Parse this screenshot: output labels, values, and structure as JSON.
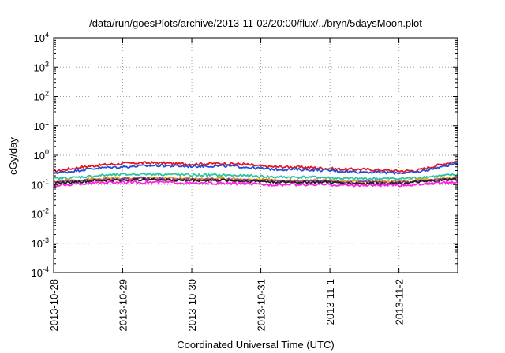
{
  "chart_data": {
    "type": "line",
    "title": "/data/run/goesPlots/archive/2013-11-02/20:00/flux/../bryn/5daysMoon.plot",
    "xlabel": "Coordinated Universal Time (UTC)",
    "ylabel": "cGy/day",
    "y_scale": "log",
    "ylim": [
      0.0001,
      10000
    ],
    "xlim": [
      0,
      5.85
    ],
    "grid": true,
    "legend": "none",
    "x_ticks": [
      {
        "label": "2013-10-28",
        "value": 0
      },
      {
        "label": "2013-10-29",
        "value": 1
      },
      {
        "label": "2013-10-30",
        "value": 2
      },
      {
        "label": "2013-10-31",
        "value": 3
      },
      {
        "label": "2013-11-1",
        "value": 4
      },
      {
        "label": "2013-11-2",
        "value": 5
      }
    ],
    "y_ticks": [
      {
        "base": "10",
        "exp": "-4",
        "value": 0.0001
      },
      {
        "base": "10",
        "exp": "-3",
        "value": 0.001
      },
      {
        "base": "10",
        "exp": "-2",
        "value": 0.01
      },
      {
        "base": "10",
        "exp": "-1",
        "value": 0.1
      },
      {
        "base": "10",
        "exp": "0",
        "value": 1
      },
      {
        "base": "10",
        "exp": "1",
        "value": 10
      },
      {
        "base": "10",
        "exp": "2",
        "value": 100
      },
      {
        "base": "10",
        "exp": "3",
        "value": 1000
      },
      {
        "base": "10",
        "exp": "4",
        "value": 10000
      }
    ],
    "x": [
      0,
      0.25,
      0.5,
      0.75,
      1,
      1.25,
      1.5,
      1.75,
      2,
      2.25,
      2.5,
      2.75,
      3,
      3.25,
      3.5,
      3.75,
      4,
      4.25,
      4.5,
      4.75,
      5,
      5.25,
      5.5,
      5.75,
      5.85
    ],
    "series": [
      {
        "color": "#e8141e",
        "values": [
          0.28,
          0.35,
          0.42,
          0.48,
          0.52,
          0.55,
          0.55,
          0.52,
          0.5,
          0.52,
          0.52,
          0.5,
          0.42,
          0.4,
          0.4,
          0.38,
          0.35,
          0.33,
          0.33,
          0.31,
          0.29,
          0.3,
          0.42,
          0.58,
          0.6
        ]
      },
      {
        "color": "#1f4ede",
        "values": [
          0.25,
          0.28,
          0.34,
          0.38,
          0.4,
          0.43,
          0.45,
          0.43,
          0.42,
          0.43,
          0.43,
          0.4,
          0.35,
          0.33,
          0.33,
          0.32,
          0.3,
          0.28,
          0.27,
          0.26,
          0.25,
          0.26,
          0.35,
          0.48,
          0.5
        ]
      },
      {
        "color": "#2bc4a2",
        "values": [
          0.16,
          0.17,
          0.19,
          0.21,
          0.22,
          0.23,
          0.23,
          0.22,
          0.21,
          0.21,
          0.21,
          0.2,
          0.19,
          0.18,
          0.18,
          0.18,
          0.17,
          0.16,
          0.16,
          0.16,
          0.16,
          0.17,
          0.19,
          0.21,
          0.22
        ]
      },
      {
        "color": "#f0a000",
        "values": [
          0.13,
          0.14,
          0.15,
          0.16,
          0.16,
          0.17,
          0.17,
          0.16,
          0.16,
          0.16,
          0.16,
          0.15,
          0.15,
          0.14,
          0.14,
          0.14,
          0.14,
          0.13,
          0.13,
          0.13,
          0.13,
          0.14,
          0.15,
          0.17,
          0.17
        ]
      },
      {
        "color": "#8a3aa0",
        "values": [
          0.12,
          0.13,
          0.14,
          0.15,
          0.15,
          0.16,
          0.16,
          0.15,
          0.15,
          0.15,
          0.15,
          0.14,
          0.14,
          0.13,
          0.13,
          0.13,
          0.13,
          0.12,
          0.12,
          0.12,
          0.12,
          0.13,
          0.14,
          0.16,
          0.16
        ]
      },
      {
        "color": "#222222",
        "values": [
          0.11,
          0.12,
          0.13,
          0.14,
          0.14,
          0.15,
          0.15,
          0.14,
          0.14,
          0.14,
          0.14,
          0.13,
          0.13,
          0.12,
          0.12,
          0.12,
          0.12,
          0.11,
          0.11,
          0.11,
          0.11,
          0.12,
          0.13,
          0.15,
          0.15
        ]
      },
      {
        "color": "#ff22e0",
        "values": [
          0.09,
          0.1,
          0.11,
          0.12,
          0.12,
          0.12,
          0.12,
          0.12,
          0.11,
          0.11,
          0.11,
          0.11,
          0.1,
          0.1,
          0.1,
          0.1,
          0.1,
          0.095,
          0.095,
          0.095,
          0.095,
          0.1,
          0.11,
          0.12,
          0.12
        ]
      }
    ]
  }
}
